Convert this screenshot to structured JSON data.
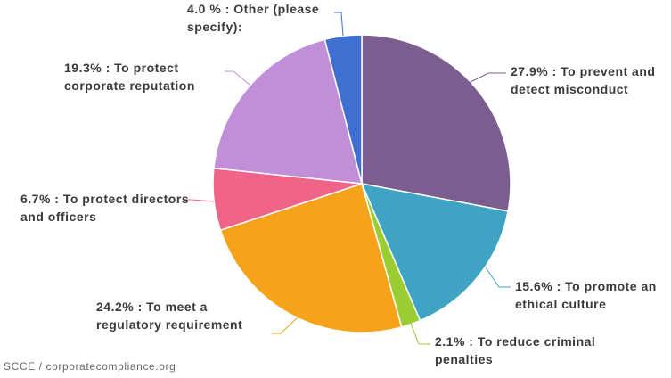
{
  "chart_data": {
    "type": "pie",
    "categories": [
      "27.9% : To prevent and detect misconduct",
      "15.6% : To promote an ethical culture",
      "2.1% : To reduce criminal penalties",
      "24.2% : To meet a regulatory requirement",
      "6.7% : To protect directors and officers",
      "19.3% : To protect corporate reputation",
      "4.0 % : Other (please specify):"
    ],
    "values": [
      27.9,
      15.6,
      2.1,
      24.2,
      6.7,
      19.3,
      4.0
    ],
    "colors": [
      "#7b5e8f",
      "#3fa3c4",
      "#9acd32",
      "#f5a31a",
      "#f0648a",
      "#c08fd8",
      "#3f6fd0"
    ],
    "source": "SCCE / corporatecompliance.org"
  }
}
